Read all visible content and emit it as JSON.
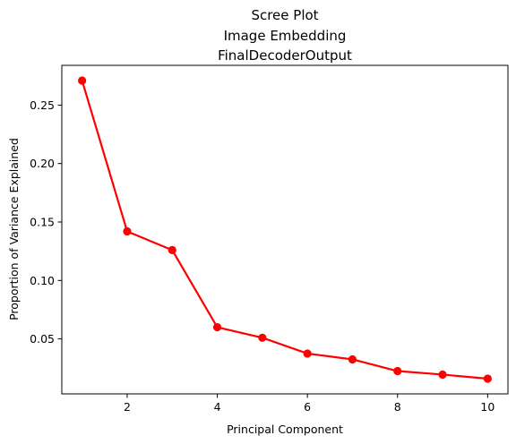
{
  "chart_data": {
    "type": "line",
    "title_lines": [
      "Scree Plot",
      "Image Embedding",
      "FinalDecoderOutput"
    ],
    "xlabel": "Principal Component",
    "ylabel": "Proportion of Variance Explained",
    "x": [
      1,
      2,
      3,
      4,
      5,
      6,
      7,
      8,
      9,
      10
    ],
    "series": [
      {
        "values": [
          0.271,
          0.142,
          0.126,
          0.06,
          0.051,
          0.0375,
          0.0325,
          0.0225,
          0.0195,
          0.016
        ]
      }
    ],
    "xlim": [
      0.55,
      10.45
    ],
    "ylim": [
      0.003,
      0.284
    ],
    "xticks": [
      2,
      4,
      6,
      8,
      10
    ],
    "yticks": [
      0.05,
      0.1,
      0.15,
      0.2,
      0.25
    ],
    "ytick_labels": [
      "0.05",
      "0.10",
      "0.15",
      "0.20",
      "0.25"
    ],
    "grid": false,
    "color": "#ff0000"
  }
}
